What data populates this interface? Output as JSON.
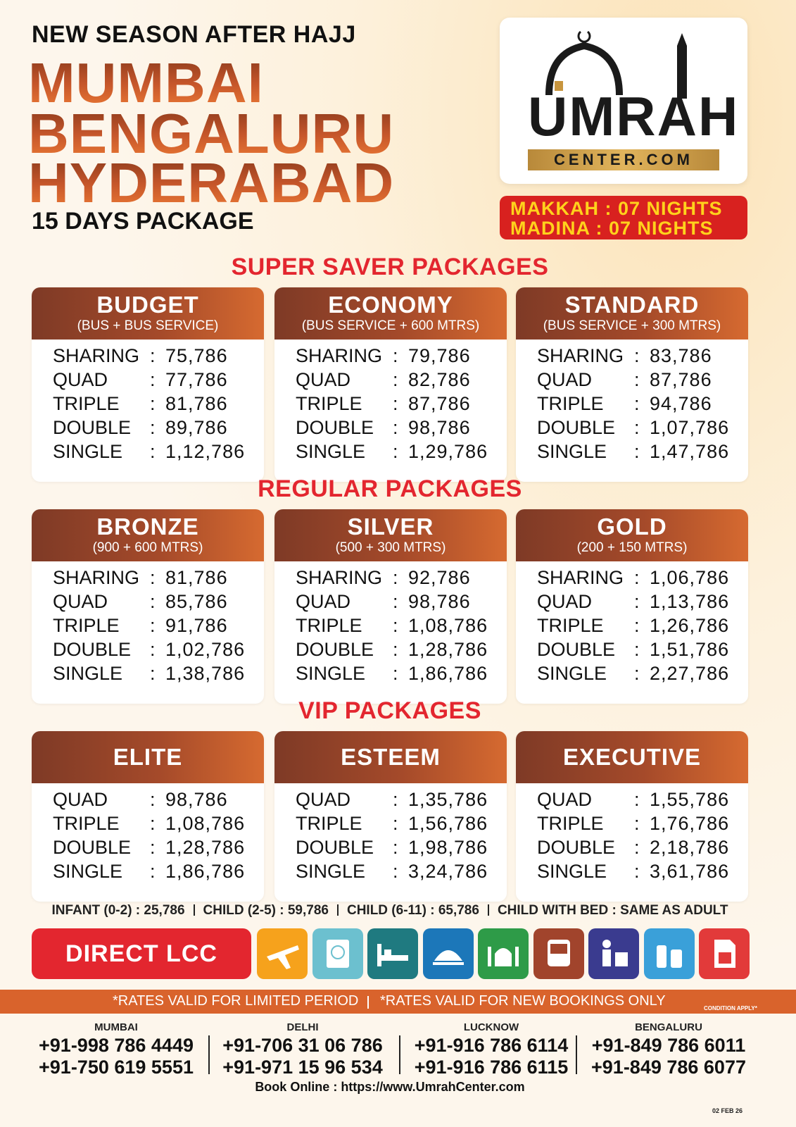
{
  "header": {
    "kicker": "NEW SEASON AFTER HAJJ",
    "cities": [
      "MUMBAI",
      "BENGALURU",
      "HYDERABAD"
    ],
    "duration": "15 DAYS PACKAGE"
  },
  "logo": {
    "brand": "UMRAH",
    "domain": "CENTER.COM"
  },
  "nights": [
    "MAKKAH : 07 NIGHTS",
    "MADINA : 07 NIGHTS"
  ],
  "sections": [
    {
      "title": "SUPER SAVER PACKAGES",
      "packages": [
        {
          "name": "BUDGET",
          "subtitle": "(BUS + BUS SERVICE)",
          "rows": [
            {
              "type": "SHARING",
              "price": "75,786"
            },
            {
              "type": "QUAD",
              "price": "77,786"
            },
            {
              "type": "TRIPLE",
              "price": "81,786"
            },
            {
              "type": "DOUBLE",
              "price": "89,786"
            },
            {
              "type": "SINGLE",
              "price": "1,12,786"
            }
          ]
        },
        {
          "name": "ECONOMY",
          "subtitle": "(BUS SERVICE + 600 MTRS)",
          "rows": [
            {
              "type": "SHARING",
              "price": "79,786"
            },
            {
              "type": "QUAD",
              "price": "82,786"
            },
            {
              "type": "TRIPLE",
              "price": "87,786"
            },
            {
              "type": "DOUBLE",
              "price": "98,786"
            },
            {
              "type": "SINGLE",
              "price": "1,29,786"
            }
          ]
        },
        {
          "name": "STANDARD",
          "subtitle": "(BUS SERVICE + 300 MTRS)",
          "rows": [
            {
              "type": "SHARING",
              "price": "83,786"
            },
            {
              "type": "QUAD",
              "price": "87,786"
            },
            {
              "type": "TRIPLE",
              "price": "94,786"
            },
            {
              "type": "DOUBLE",
              "price": "1,07,786"
            },
            {
              "type": "SINGLE",
              "price": "1,47,786"
            }
          ]
        }
      ]
    },
    {
      "title": "REGULAR  PACKAGES",
      "packages": [
        {
          "name": "BRONZE",
          "subtitle": "(900 + 600 MTRS)",
          "rows": [
            {
              "type": "SHARING",
              "price": "81,786"
            },
            {
              "type": "QUAD",
              "price": "85,786"
            },
            {
              "type": "TRIPLE",
              "price": "91,786"
            },
            {
              "type": "DOUBLE",
              "price": "1,02,786"
            },
            {
              "type": "SINGLE",
              "price": "1,38,786"
            }
          ]
        },
        {
          "name": "SILVER",
          "subtitle": "(500 + 300 MTRS)",
          "rows": [
            {
              "type": "SHARING",
              "price": "92,786"
            },
            {
              "type": "QUAD",
              "price": "98,786"
            },
            {
              "type": "TRIPLE",
              "price": "1,08,786"
            },
            {
              "type": "DOUBLE",
              "price": "1,28,786"
            },
            {
              "type": "SINGLE",
              "price": "1,86,786"
            }
          ]
        },
        {
          "name": "GOLD",
          "subtitle": "(200 + 150 MTRS)",
          "rows": [
            {
              "type": "SHARING",
              "price": "1,06,786"
            },
            {
              "type": "QUAD",
              "price": "1,13,786"
            },
            {
              "type": "TRIPLE",
              "price": "1,26,786"
            },
            {
              "type": "DOUBLE",
              "price": "1,51,786"
            },
            {
              "type": "SINGLE",
              "price": "2,27,786"
            }
          ]
        }
      ]
    },
    {
      "title": "VIP PACKAGES",
      "packages": [
        {
          "name": "ELITE",
          "rows": [
            {
              "type": "QUAD",
              "price": "98,786"
            },
            {
              "type": "TRIPLE",
              "price": "1,08,786"
            },
            {
              "type": "DOUBLE",
              "price": "1,28,786"
            },
            {
              "type": "SINGLE",
              "price": "1,86,786"
            }
          ]
        },
        {
          "name": "ESTEEM",
          "rows": [
            {
              "type": "QUAD",
              "price": "1,35,786"
            },
            {
              "type": "TRIPLE",
              "price": "1,56,786"
            },
            {
              "type": "DOUBLE",
              "price": "1,98,786"
            },
            {
              "type": "SINGLE",
              "price": "3,24,786"
            }
          ]
        },
        {
          "name": "EXECUTIVE",
          "rows": [
            {
              "type": "QUAD",
              "price": "1,55,786"
            },
            {
              "type": "TRIPLE",
              "price": "1,76,786"
            },
            {
              "type": "DOUBLE",
              "price": "2,18,786"
            },
            {
              "type": "SINGLE",
              "price": "3,61,786"
            }
          ]
        }
      ]
    }
  ],
  "child_rates": [
    "INFANT (0-2) : 25,786",
    "CHILD (2-5) : 59,786",
    "CHILD (6-11) : 65,786",
    "CHILD WITH BED : SAME AS ADULT"
  ],
  "direct": "DIRECT LCC",
  "footer": {
    "notes": [
      "*RATES VALID FOR LIMITED PERIOD",
      "*RATES VALID FOR NEW BOOKINGS ONLY"
    ],
    "condition": "CONDITION APPLY*",
    "offices": [
      {
        "city": "MUMBAI",
        "phones": [
          "+91-998 786 4449",
          "+91-750  619  5551"
        ]
      },
      {
        "city": "DELHI",
        "phones": [
          "+91-706 31 06 786",
          "+91-971 15 96 534"
        ]
      },
      {
        "city": "LUCKNOW",
        "phones": [
          "+91-916 786 6114",
          "+91-916 786 6115"
        ]
      },
      {
        "city": "BENGALURU",
        "phones": [
          "+91-849 786 6011",
          "+91-849 786 6077"
        ]
      }
    ],
    "booking": "Book Online : https://www.UmrahCenter.com",
    "date": "02 FEB 26"
  }
}
